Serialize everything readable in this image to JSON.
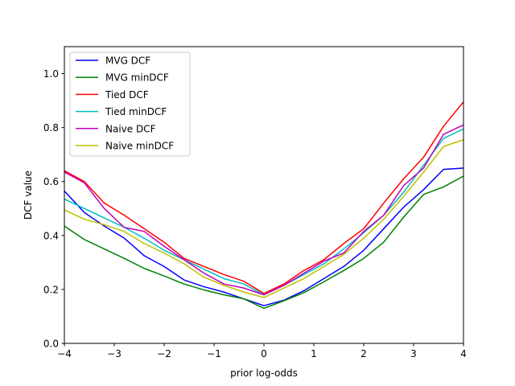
{
  "chart_data": {
    "type": "line",
    "xlabel": "prior log-odds",
    "ylabel": "DCF value",
    "xlim": [
      -4,
      4
    ],
    "ylim": [
      0,
      1.1
    ],
    "xticks": [
      -4,
      -3,
      -2,
      -1,
      0,
      1,
      2,
      3,
      4
    ],
    "xtick_labels": [
      "−4",
      "−3",
      "−2",
      "−1",
      "0",
      "1",
      "2",
      "3",
      "4"
    ],
    "yticks": [
      0,
      0.2,
      0.4,
      0.6,
      0.8,
      1.0
    ],
    "ytick_labels": [
      "0.0",
      "0.2",
      "0.4",
      "0.6",
      "0.8",
      "1.0"
    ],
    "grid": false,
    "legend_position": "top-left",
    "x": [
      -4,
      -3.6,
      -3.2,
      -2.8,
      -2.4,
      -2.0,
      -1.6,
      -1.2,
      -0.8,
      -0.4,
      0,
      0.4,
      0.8,
      1.2,
      1.6,
      2.0,
      2.4,
      2.8,
      3.2,
      3.6,
      4.0
    ],
    "series": [
      {
        "name": "MVG DCF",
        "color": "#0000ff",
        "values": [
          0.565,
          0.485,
          0.435,
          0.39,
          0.325,
          0.285,
          0.235,
          0.21,
          0.19,
          0.165,
          0.14,
          0.16,
          0.195,
          0.24,
          0.285,
          0.345,
          0.425,
          0.505,
          0.57,
          0.645,
          0.65
        ]
      },
      {
        "name": "MVG minDCF",
        "color": "#008000",
        "values": [
          0.435,
          0.385,
          0.35,
          0.315,
          0.278,
          0.25,
          0.22,
          0.198,
          0.18,
          0.165,
          0.13,
          0.158,
          0.188,
          0.228,
          0.27,
          0.315,
          0.375,
          0.468,
          0.552,
          0.58,
          0.62
        ]
      },
      {
        "name": "Tied DCF",
        "color": "#ff0000",
        "values": [
          0.64,
          0.6,
          0.52,
          0.475,
          0.425,
          0.375,
          0.315,
          0.285,
          0.255,
          0.23,
          0.185,
          0.22,
          0.27,
          0.31,
          0.37,
          0.425,
          0.52,
          0.61,
          0.69,
          0.805,
          0.895
        ]
      },
      {
        "name": "Tied minDCF",
        "color": "#00bfbf",
        "values": [
          0.535,
          0.5,
          0.465,
          0.43,
          0.39,
          0.345,
          0.31,
          0.275,
          0.24,
          0.22,
          0.18,
          0.215,
          0.255,
          0.295,
          0.35,
          0.41,
          0.475,
          0.56,
          0.66,
          0.76,
          0.795
        ]
      },
      {
        "name": "Naive DCF",
        "color": "#bf00bf",
        "values": [
          0.635,
          0.595,
          0.5,
          0.43,
          0.415,
          0.36,
          0.31,
          0.26,
          0.22,
          0.205,
          0.18,
          0.215,
          0.26,
          0.305,
          0.335,
          0.415,
          0.475,
          0.585,
          0.65,
          0.775,
          0.81
        ]
      },
      {
        "name": "Naive minDCF",
        "color": "#bfbf00",
        "values": [
          0.495,
          0.46,
          0.44,
          0.415,
          0.37,
          0.335,
          0.295,
          0.245,
          0.215,
          0.19,
          0.17,
          0.205,
          0.24,
          0.285,
          0.33,
          0.39,
          0.46,
          0.545,
          0.635,
          0.73,
          0.755
        ]
      }
    ]
  }
}
